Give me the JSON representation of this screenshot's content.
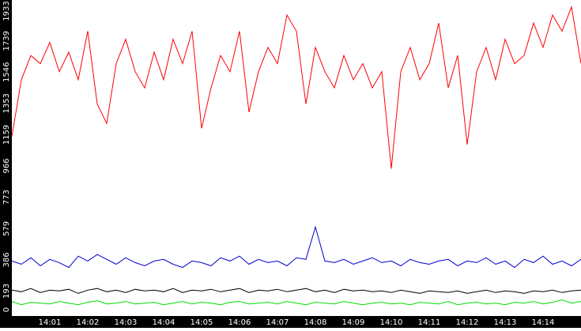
{
  "chart_data": {
    "type": "line",
    "categories": [
      null,
      null,
      null,
      null,
      "14:01",
      null,
      null,
      null,
      "14:02",
      null,
      null,
      null,
      "14:03",
      null,
      null,
      null,
      "14:04",
      null,
      null,
      null,
      "14:05",
      null,
      null,
      null,
      "14:06",
      null,
      null,
      null,
      "14:07",
      null,
      null,
      null,
      "14:08",
      null,
      null,
      null,
      "14:09",
      null,
      null,
      null,
      "14:10",
      null,
      null,
      null,
      "14:11",
      null,
      null,
      null,
      "14:12",
      null,
      null,
      null,
      "14:13",
      null,
      null,
      null,
      "14:14",
      null,
      null,
      null,
      null
    ],
    "series": [
      {
        "color": "#ff0000",
        "values": [
          1100,
          1450,
          1600,
          1550,
          1680,
          1500,
          1620,
          1450,
          1750,
          1300,
          1180,
          1550,
          1700,
          1500,
          1400,
          1620,
          1450,
          1700,
          1550,
          1750,
          1150,
          1400,
          1600,
          1500,
          1750,
          1250,
          1500,
          1650,
          1550,
          1850,
          1750,
          1300,
          1650,
          1500,
          1400,
          1600,
          1450,
          1550,
          1400,
          1500,
          900,
          1500,
          1650,
          1450,
          1550,
          1800,
          1400,
          1600,
          1050,
          1500,
          1650,
          1450,
          1700,
          1550,
          1600,
          1800,
          1650,
          1850,
          1750,
          1900,
          1550
        ]
      },
      {
        "color": "#0000cc",
        "values": [
          330,
          310,
          350,
          300,
          340,
          320,
          290,
          360,
          330,
          370,
          340,
          310,
          350,
          320,
          300,
          330,
          340,
          310,
          290,
          330,
          320,
          300,
          350,
          330,
          360,
          310,
          340,
          320,
          330,
          300,
          350,
          340,
          540,
          330,
          320,
          340,
          310,
          330,
          350,
          320,
          330,
          300,
          340,
          320,
          310,
          330,
          340,
          300,
          330,
          320,
          350,
          310,
          330,
          290,
          340,
          320,
          360,
          310,
          330,
          300,
          340
        ]
      },
      {
        "color": "#000000",
        "values": [
          150,
          140,
          160,
          135,
          150,
          145,
          155,
          130,
          150,
          160,
          140,
          150,
          135,
          155,
          145,
          150,
          140,
          160,
          135,
          150,
          145,
          155,
          140,
          150,
          160,
          135,
          150,
          145,
          155,
          140,
          150,
          160,
          140,
          150,
          135,
          155,
          145,
          150,
          140,
          145,
          135,
          150,
          140,
          130,
          145,
          140,
          135,
          145,
          130,
          140,
          150,
          135,
          145,
          140,
          130,
          145,
          140,
          150,
          135,
          145,
          150
        ]
      },
      {
        "color": "#00dd00",
        "values": [
          80,
          60,
          75,
          70,
          65,
          80,
          70,
          60,
          75,
          85,
          65,
          70,
          80,
          65,
          70,
          75,
          60,
          70,
          80,
          65,
          75,
          70,
          60,
          75,
          80,
          65,
          70,
          75,
          65,
          80,
          70,
          60,
          75,
          70,
          65,
          80,
          70,
          60,
          70,
          75,
          65,
          70,
          60,
          75,
          70,
          65,
          80,
          60,
          70,
          75,
          65,
          70,
          60,
          75,
          70,
          80,
          65,
          75,
          90,
          70,
          80
        ]
      }
    ],
    "ylim": [
      0,
      1933
    ],
    "yticks": [
      0,
      193,
      386,
      579,
      773,
      966,
      1159,
      1353,
      1546,
      1739,
      1933
    ]
  }
}
